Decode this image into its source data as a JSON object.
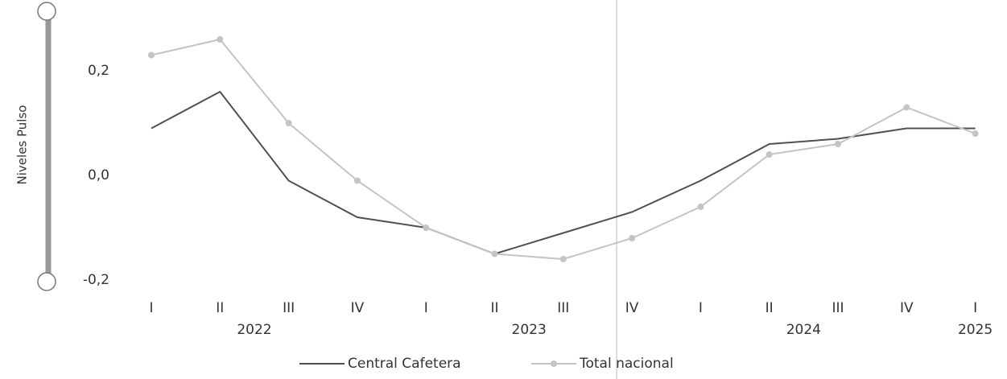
{
  "chart_data": {
    "type": "line",
    "y_label": "Niveles Pulso",
    "categories": [
      "I",
      "II",
      "III",
      "IV",
      "I",
      "II",
      "III",
      "IV",
      "I",
      "II",
      "III",
      "IV",
      "I"
    ],
    "years": [
      "2022",
      "2023",
      "2024",
      "2025"
    ],
    "series": [
      {
        "name": "Central Cafetera",
        "color": "#505050",
        "values": [
          0.09,
          0.16,
          -0.01,
          -0.08,
          -0.1,
          -0.15,
          -0.11,
          -0.07,
          -0.01,
          0.06,
          0.07,
          0.09,
          0.09
        ]
      },
      {
        "name": "Total nacional",
        "color": "#c4c4c4",
        "marker": true,
        "values": [
          0.23,
          0.26,
          0.1,
          -0.01,
          -0.1,
          -0.15,
          -0.16,
          -0.12,
          -0.06,
          0.04,
          0.06,
          0.13,
          0.08
        ]
      }
    ],
    "ylim": [
      -0.2,
      0.3
    ],
    "yticks": [
      {
        "value": 0.2,
        "label": "0,2"
      },
      {
        "value": 0.0,
        "label": "0,0"
      },
      {
        "value": -0.2,
        "label": "-0,2"
      }
    ],
    "legend": "bottom"
  }
}
